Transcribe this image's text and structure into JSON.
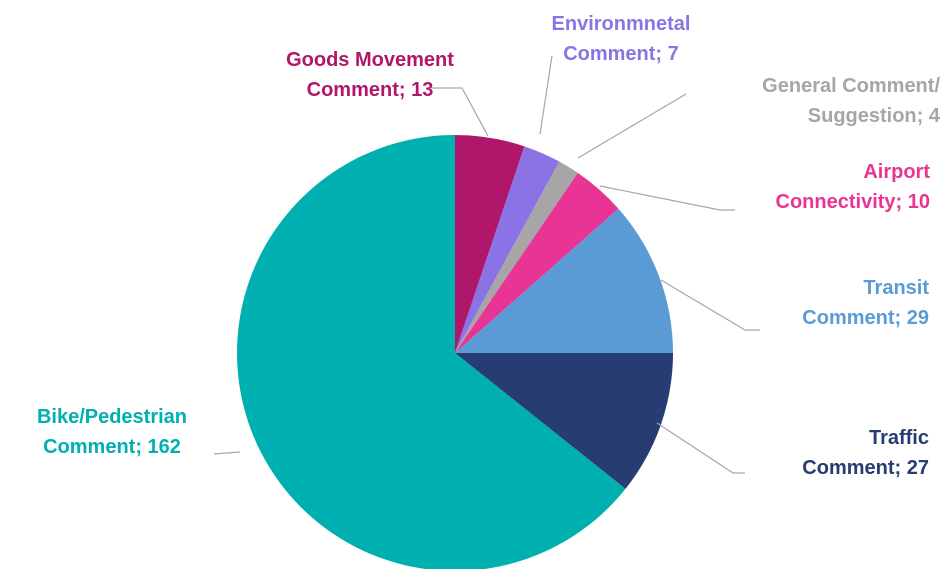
{
  "chart_data": {
    "type": "pie",
    "start_angle_deg": 0,
    "direction": "clockwise",
    "slices": [
      {
        "name": "Goods Movement Comment",
        "value": 13,
        "color": "#b0176b",
        "label_lines": [
          "Goods Movement",
          "Comment; 13"
        ]
      },
      {
        "name": "Environmnetal Comment",
        "value": 7,
        "color": "#8b73e6",
        "label_lines": [
          "Environmnetal",
          "Comment; 7"
        ]
      },
      {
        "name": "General Comment/ Suggestion",
        "value": 4,
        "color": "#a6a6a6",
        "label_lines": [
          "General Comment/",
          "Suggestion; 4"
        ]
      },
      {
        "name": "Airport Connectivity",
        "value": 10,
        "color": "#e83595",
        "label_lines": [
          "Airport",
          "Connectivity; 10"
        ]
      },
      {
        "name": "Transit Comment",
        "value": 29,
        "color": "#5b9bd5",
        "label_lines": [
          "Transit",
          "Comment; 29"
        ]
      },
      {
        "name": "Traffic Comment",
        "value": 27,
        "color": "#283c74",
        "label_lines": [
          "Traffic",
          "Comment; 27"
        ]
      },
      {
        "name": "Bike/Pedestrian Comment",
        "value": 162,
        "color": "#00b0b0",
        "label_lines": [
          "Bike/Pedestrian",
          "Comment; 162"
        ]
      }
    ]
  }
}
